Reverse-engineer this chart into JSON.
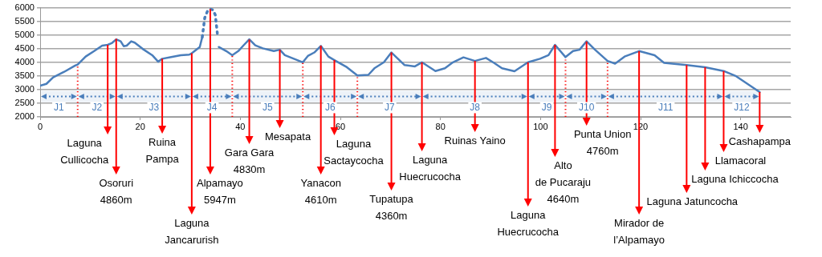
{
  "chart_data": {
    "type": "line",
    "xlim": [
      0,
      150
    ],
    "xticks": [
      0,
      20,
      40,
      60,
      80,
      100,
      120,
      140
    ],
    "ylim": [
      2000,
      6000
    ],
    "yticks": [
      2000,
      2500,
      3000,
      3500,
      4000,
      4500,
      5000,
      5500,
      6000
    ],
    "grid": "y",
    "legend": false,
    "marker": "none",
    "series": [
      {
        "color": "#4a7ebb",
        "line_style": "solid",
        "x": [
          0,
          1.25,
          2.6,
          4.8,
          7,
          7.5,
          9.1,
          10.8,
          12.4,
          13.5,
          14.3,
          15.2,
          16.1,
          16.7,
          17.3,
          18.2,
          18.9,
          20.5,
          22.4,
          23.6,
          24.4,
          26.2,
          28.1,
          29.8,
          30.3,
          31.9,
          32.4,
          34,
          35.7,
          37.2,
          38.4,
          39.6,
          40.6,
          41.8,
          43,
          44.5,
          46.7,
          47.9,
          48.9,
          51,
          52.5,
          53.5,
          54.8,
          56.1,
          57.6,
          58.8,
          61.3,
          63.4,
          65.6,
          66.8,
          68.7,
          70.2,
          72.8,
          74.9,
          76.3,
          79,
          80.9,
          82.5,
          84.6,
          86.9,
          89.1,
          90.7,
          92.3,
          94.8,
          97.5,
          99.9,
          101.6,
          102.9,
          105,
          106.5,
          107.8,
          109.2,
          110.9,
          113.4,
          114.9,
          116.8,
          119.7,
          122.8,
          124.7,
          129.2,
          132.9,
          136.6,
          139.1,
          143.8
        ],
        "values": [
          3140,
          3210,
          3450,
          3650,
          3880,
          3920,
          4210,
          4410,
          4610,
          4640,
          4700,
          4840,
          4770,
          4590,
          4610,
          4770,
          4720,
          4490,
          4260,
          4020,
          4130,
          4190,
          4260,
          4280,
          4330,
          4560,
          4920,
          null,
          4560,
          4410,
          4260,
          4410,
          4610,
          4840,
          4620,
          4510,
          4410,
          4460,
          4260,
          4110,
          4000,
          4230,
          4360,
          4600,
          4210,
          4080,
          3820,
          3520,
          3540,
          3780,
          4000,
          4360,
          3900,
          3850,
          4000,
          3680,
          3780,
          4000,
          4180,
          4050,
          4160,
          3980,
          3780,
          3670,
          4000,
          4130,
          4260,
          4640,
          4190,
          4410,
          4460,
          4770,
          4460,
          4050,
          3950,
          4210,
          4410,
          4260,
          3980,
          3900,
          3820,
          3680,
          3490,
          2910
        ]
      },
      {
        "color": "#4a7ebb",
        "line_style": "dotted",
        "x": [
          32.4,
          32.9,
          33.5,
          34,
          34.5,
          35,
          35.5
        ],
        "values": [
          4920,
          5630,
          5900,
          5947,
          5920,
          5740,
          4920
        ]
      }
    ],
    "annotations": [
      {
        "text": "Laguna\nCullicocha",
        "x": 13.5,
        "y": 4640
      },
      {
        "text": "Osoruri\n4860m",
        "x": 15.2,
        "y": 4860
      },
      {
        "text": "Ruina\nPampa",
        "x": 24.4,
        "y": 4130
      },
      {
        "text": "Laguna\nJancarurish",
        "x": 30.3,
        "y": 4330
      },
      {
        "text": "Alpamayo\n5947m",
        "x": 34,
        "y": 5947
      },
      {
        "text": "Gara Gara\n4830m",
        "x": 41.8,
        "y": 4830
      },
      {
        "text": "Mesapata",
        "x": 47.9,
        "y": 4460
      },
      {
        "text": "Yanacon\n4610m",
        "x": 56.1,
        "y": 4610
      },
      {
        "text": "Laguna\nSactaycocha",
        "x": 58.8,
        "y": 4080
      },
      {
        "text": "Tupatupa\n4360m",
        "x": 70.2,
        "y": 4360
      },
      {
        "text": "Laguna\nHuecrucocha",
        "x": 76.3,
        "y": 4000
      },
      {
        "text": "Ruinas Yaino",
        "x": 86.9,
        "y": 4050
      },
      {
        "text": "Laguna\nHuecrucocha",
        "x": 97.5,
        "y": 4000
      },
      {
        "text": "Alto\nde Pucaraju\n4640m",
        "x": 102.9,
        "y": 4640
      },
      {
        "text": "Punta Union\n4760m",
        "x": 109.2,
        "y": 4760
      },
      {
        "text": "Mirador de\nl’Alpamayo",
        "x": 119.7,
        "y": 4410
      },
      {
        "text": "Laguna Jatuncocha",
        "x": 129.2,
        "y": 3900
      },
      {
        "text": "Laguna Ichiccocha",
        "x": 132.9,
        "y": 3820
      },
      {
        "text": "Llamacoral",
        "x": 136.6,
        "y": 3680
      },
      {
        "text": "Cashapampa",
        "x": 143.8,
        "y": 2910
      }
    ],
    "ref_lines": [
      {
        "axis": "x",
        "value": 7.5,
        "color": "#ff0000",
        "line_style": "dotted"
      },
      {
        "axis": "x",
        "value": 38.4,
        "color": "#ff0000",
        "line_style": "dotted"
      },
      {
        "axis": "x",
        "value": 52.5,
        "color": "#ff0000",
        "line_style": "dotted"
      },
      {
        "axis": "x",
        "value": 63.4,
        "color": "#ff0000",
        "line_style": "dotted"
      },
      {
        "axis": "x",
        "value": 105,
        "color": "#ff0000",
        "line_style": "dotted"
      },
      {
        "axis": "x",
        "value": 113.4,
        "color": "#ff0000",
        "line_style": "dotted"
      }
    ],
    "bands": [
      {
        "axis": "x",
        "from": 0,
        "to": 7.5,
        "label": "J1",
        "color": "#4a7ebb"
      },
      {
        "axis": "x",
        "from": 7.5,
        "to": 15.2,
        "label": "J2",
        "color": "#4a7ebb"
      },
      {
        "axis": "x",
        "from": 15.2,
        "to": 30.3,
        "label": "J3",
        "color": "#4a7ebb"
      },
      {
        "axis": "x",
        "from": 30.3,
        "to": 38.4,
        "label": "J4",
        "color": "#4a7ebb"
      },
      {
        "axis": "x",
        "from": 38.4,
        "to": 52.5,
        "label": "J5",
        "color": "#4a7ebb"
      },
      {
        "axis": "x",
        "from": 52.5,
        "to": 63.4,
        "label": "J6",
        "color": "#4a7ebb"
      },
      {
        "axis": "x",
        "from": 63.4,
        "to": 76.3,
        "label": "J7",
        "color": "#4a7ebb"
      },
      {
        "axis": "x",
        "from": 76.3,
        "to": 97.5,
        "label": "J8",
        "color": "#4a7ebb"
      },
      {
        "axis": "x",
        "from": 97.5,
        "to": 105,
        "label": "J9",
        "color": "#4a7ebb"
      },
      {
        "axis": "x",
        "from": 105,
        "to": 113.4,
        "label": "J10",
        "color": "#4a7ebb"
      },
      {
        "axis": "x",
        "from": 113.4,
        "to": 136.6,
        "label": "J11",
        "color": "#4a7ebb"
      },
      {
        "axis": "x",
        "from": 136.6,
        "to": 143.8,
        "label": "J12",
        "color": "#4a7ebb"
      }
    ]
  }
}
